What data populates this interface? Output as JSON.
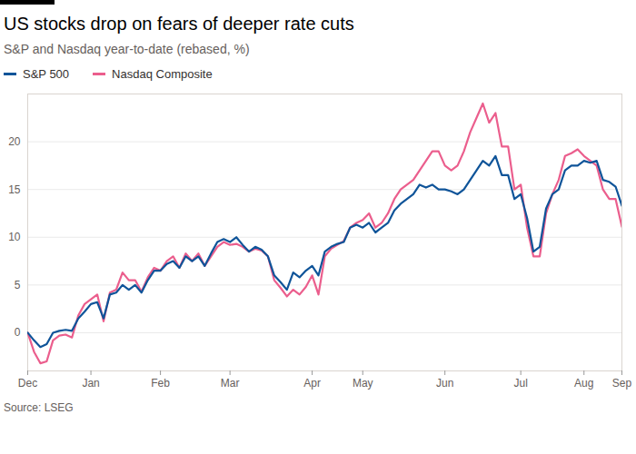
{
  "chart_data": {
    "type": "line",
    "title": "US stocks drop on fears of deeper rate cuts",
    "subtitle": "S&P and Nasdaq year-to-date (rebased, %)",
    "source": "Source: LSEG",
    "categories": [
      "Dec",
      null,
      null,
      null,
      null,
      null,
      null,
      null,
      null,
      null,
      "Jan",
      null,
      null,
      null,
      null,
      null,
      null,
      null,
      null,
      null,
      null,
      "Feb",
      null,
      null,
      null,
      null,
      null,
      null,
      null,
      null,
      null,
      null,
      "Mar",
      null,
      null,
      null,
      null,
      null,
      null,
      null,
      null,
      null,
      null,
      null,
      null,
      "Apr",
      null,
      null,
      null,
      null,
      null,
      null,
      null,
      "May",
      null,
      null,
      null,
      null,
      null,
      null,
      null,
      null,
      null,
      null,
      null,
      null,
      "Jun",
      null,
      null,
      null,
      null,
      null,
      null,
      null,
      null,
      null,
      null,
      null,
      "Jul",
      null,
      null,
      null,
      null,
      null,
      null,
      null,
      null,
      null,
      "Aug",
      null,
      null,
      null,
      null,
      null,
      "Sep"
    ],
    "series": [
      {
        "name": "S&P 500",
        "color": "#0f5499",
        "values": [
          0,
          -0.8,
          -1.5,
          -1.2,
          0,
          0.2,
          0.3,
          0.2,
          1.5,
          2.2,
          3.0,
          3.2,
          1.5,
          4.0,
          4.2,
          5.0,
          4.5,
          5.0,
          4.2,
          5.5,
          6.5,
          6.5,
          7.2,
          7.5,
          6.8,
          8.0,
          7.5,
          8.0,
          7.0,
          8.3,
          9.5,
          9.8,
          9.5,
          10.0,
          9.2,
          8.5,
          9.0,
          8.7,
          8.0,
          6.0,
          5.3,
          4.5,
          6.3,
          5.8,
          6.5,
          7.0,
          6.0,
          8.5,
          9.0,
          9.3,
          9.5,
          11.0,
          11.3,
          11.0,
          11.5,
          10.5,
          11.0,
          11.5,
          12.8,
          13.5,
          14.0,
          14.5,
          15.5,
          15.2,
          15.5,
          15.0,
          15.0,
          14.8,
          14.5,
          15.0,
          16.0,
          17.0,
          18.0,
          17.5,
          18.5,
          16.5,
          16.5,
          14.0,
          14.5,
          12.0,
          8.5,
          9.0,
          13.0,
          14.5,
          15.0,
          17.0,
          17.5,
          17.5,
          18.0,
          17.8,
          18.0,
          16.0,
          15.8,
          15.3,
          13.3
        ]
      },
      {
        "name": "Nasdaq Composite",
        "color": "#eb5e8d",
        "values": [
          0,
          -2.0,
          -3.2,
          -3.0,
          -0.8,
          -0.3,
          -0.2,
          -0.5,
          1.8,
          3.0,
          3.5,
          4.0,
          1.2,
          4.2,
          4.5,
          6.3,
          5.5,
          5.5,
          4.3,
          5.8,
          6.8,
          6.5,
          7.5,
          8.0,
          6.8,
          8.3,
          7.5,
          8.3,
          7.0,
          8.0,
          9.0,
          9.5,
          9.2,
          9.3,
          9.0,
          8.5,
          8.8,
          8.6,
          8.0,
          5.5,
          4.7,
          3.8,
          4.5,
          4.0,
          4.8,
          6.0,
          4.0,
          8.0,
          8.8,
          9.2,
          9.6,
          11.0,
          11.5,
          11.8,
          12.5,
          11.0,
          11.5,
          12.5,
          14.0,
          15.0,
          15.5,
          16.0,
          17.0,
          18.0,
          19.0,
          19.0,
          17.5,
          17.0,
          17.5,
          19.0,
          21.0,
          22.5,
          24.0,
          22.0,
          23.0,
          19.5,
          19.5,
          15.0,
          15.5,
          11.0,
          8.0,
          8.0,
          12.5,
          14.5,
          16.0,
          18.5,
          18.8,
          19.2,
          18.5,
          18.0,
          17.5,
          15.0,
          14.0,
          14.0,
          11.1
        ]
      }
    ],
    "ylim": [
      -4,
      25
    ],
    "yticks": [
      0,
      5,
      10,
      15,
      20
    ],
    "grid": true,
    "legend": "top-left"
  }
}
